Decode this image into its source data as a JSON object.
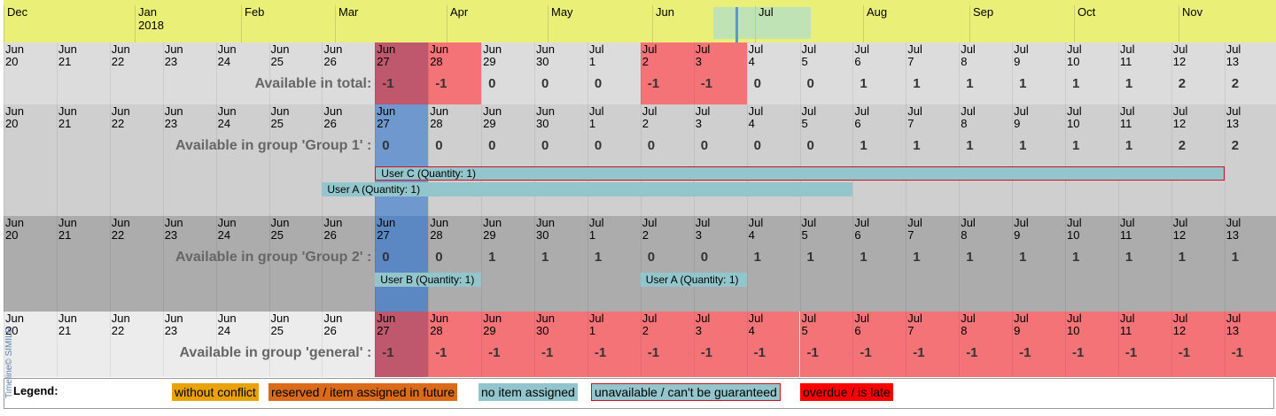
{
  "colors": {
    "overview_bg": "#eaef78",
    "window_bg": "#bfe3b4",
    "marker": "#5a96c6",
    "highlight_blue": "#6f98cf",
    "highlight_red": "#f47377",
    "highlight_dark": "#c0586d",
    "bar_teal": "#93c5cd",
    "bar_border_red": "#d31020",
    "legend_orange": "#e8a20a",
    "legend_brown": "#d96b1a",
    "legend_red": "#ff0000"
  },
  "overview": {
    "months": [
      {
        "label": "Dec",
        "year": ""
      },
      {
        "label": "Jan",
        "year": "2018"
      },
      {
        "label": "Feb",
        "year": ""
      },
      {
        "label": "Mar",
        "year": ""
      },
      {
        "label": "Apr",
        "year": ""
      },
      {
        "label": "May",
        "year": ""
      },
      {
        "label": "Jun",
        "year": ""
      },
      {
        "label": "Jul",
        "year": ""
      },
      {
        "label": "Aug",
        "year": ""
      },
      {
        "label": "Sep",
        "year": ""
      },
      {
        "label": "Oct",
        "year": ""
      },
      {
        "label": "Nov",
        "year": ""
      }
    ]
  },
  "days": [
    {
      "m": "Jun",
      "d": "20"
    },
    {
      "m": "Jun",
      "d": "21"
    },
    {
      "m": "Jun",
      "d": "22"
    },
    {
      "m": "Jun",
      "d": "23"
    },
    {
      "m": "Jun",
      "d": "24"
    },
    {
      "m": "Jun",
      "d": "25"
    },
    {
      "m": "Jun",
      "d": "26"
    },
    {
      "m": "Jun",
      "d": "27"
    },
    {
      "m": "Jun",
      "d": "28"
    },
    {
      "m": "Jun",
      "d": "29"
    },
    {
      "m": "Jun",
      "d": "30"
    },
    {
      "m": "Jul",
      "d": "1"
    },
    {
      "m": "Jul",
      "d": "2"
    },
    {
      "m": "Jul",
      "d": "3"
    },
    {
      "m": "Jul",
      "d": "4"
    },
    {
      "m": "Jul",
      "d": "5"
    },
    {
      "m": "Jul",
      "d": "6"
    },
    {
      "m": "Jul",
      "d": "7"
    },
    {
      "m": "Jul",
      "d": "8"
    },
    {
      "m": "Jul",
      "d": "9"
    },
    {
      "m": "Jul",
      "d": "10"
    },
    {
      "m": "Jul",
      "d": "11"
    },
    {
      "m": "Jul",
      "d": "12"
    },
    {
      "m": "Jul",
      "d": "13"
    }
  ],
  "bands": [
    {
      "key": "total",
      "label": "Available in total:",
      "bg": "#dcdcdc",
      "values": [
        "",
        "",
        "",
        "",
        "",
        "",
        "",
        "-1",
        "-1",
        "0",
        "0",
        "0",
        "-1",
        "-1",
        "0",
        "0",
        "1",
        "1",
        "1",
        "1",
        "1",
        "1",
        "2",
        "2"
      ],
      "cell_highlights": [
        {
          "day": 7,
          "color": "#c0586d"
        },
        {
          "day": 8,
          "color": "#f47377"
        },
        {
          "day": 12,
          "color": "#f47377"
        },
        {
          "day": 13,
          "color": "#f47377"
        }
      ],
      "bars": []
    },
    {
      "key": "group1",
      "label": "Available in group 'Group 1' :",
      "bg": "#cfcfcf",
      "values": [
        "",
        "",
        "",
        "",
        "",
        "",
        "",
        "0",
        "0",
        "0",
        "0",
        "0",
        "0",
        "0",
        "0",
        "0",
        "1",
        "1",
        "1",
        "1",
        "1",
        "1",
        "2",
        "2"
      ],
      "cell_highlights": [
        {
          "day": 7,
          "color": "#6f98cf"
        }
      ],
      "bars": [
        {
          "label": "User C (Quantity: 1)",
          "start_day": 7,
          "end_day": 22,
          "style": "unavailable"
        },
        {
          "label": "User A (Quantity: 1)",
          "start_day": 6,
          "end_day": 15,
          "style": "no-item"
        }
      ]
    },
    {
      "key": "group2",
      "label": "Available in group 'Group 2' :",
      "bg": "#acacac",
      "values": [
        "",
        "",
        "",
        "",
        "",
        "",
        "",
        "0",
        "0",
        "1",
        "1",
        "1",
        "0",
        "0",
        "1",
        "1",
        "1",
        "1",
        "1",
        "1",
        "1",
        "1",
        "1",
        "1"
      ],
      "cell_highlights": [
        {
          "day": 7,
          "color": "#5b87c2"
        }
      ],
      "bars": [
        {
          "label": "User B (Quantity: 1)",
          "start_day": 7,
          "end_day": 8,
          "style": "no-item"
        },
        {
          "label": "User A (Quantity: 1)",
          "start_day": 12,
          "end_day": 13,
          "style": "no-item"
        }
      ]
    },
    {
      "key": "general",
      "label": "Available in group 'general' :",
      "bg": "#ececec",
      "values": [
        "",
        "",
        "",
        "",
        "",
        "",
        "",
        "-1",
        "-1",
        "-1",
        "-1",
        "-1",
        "-1",
        "-1",
        "-1",
        "-1",
        "-1",
        "-1",
        "-1",
        "-1",
        "-1",
        "-1",
        "-1",
        "-1"
      ],
      "cell_highlights": [
        {
          "day": 7,
          "color": "#c0586d"
        },
        {
          "day": 8,
          "color": "#f47377"
        },
        {
          "day": 9,
          "color": "#f47377"
        },
        {
          "day": 10,
          "color": "#f47377"
        },
        {
          "day": 11,
          "color": "#f47377"
        },
        {
          "day": 12,
          "color": "#f47377"
        },
        {
          "day": 13,
          "color": "#f47377"
        },
        {
          "day": 14,
          "color": "#f47377"
        },
        {
          "day": 15,
          "color": "#f47377"
        },
        {
          "day": 16,
          "color": "#f47377"
        },
        {
          "day": 17,
          "color": "#f47377"
        },
        {
          "day": 18,
          "color": "#f47377"
        },
        {
          "day": 19,
          "color": "#f47377"
        },
        {
          "day": 20,
          "color": "#f47377"
        },
        {
          "day": 21,
          "color": "#f47377"
        },
        {
          "day": 22,
          "color": "#f47377"
        },
        {
          "day": 23,
          "color": "#f47377"
        }
      ],
      "bars": []
    }
  ],
  "legend": {
    "title": "Legend:",
    "items": [
      {
        "label": "without conflict",
        "bg": "#e8a20a",
        "border": ""
      },
      {
        "label": "reserved / item assigned in future",
        "bg": "#d96b1a",
        "border": ""
      },
      {
        "label": "no item assigned",
        "bg": "#93c5cd",
        "border": ""
      },
      {
        "label": "unavailable / can't be guaranteed",
        "bg": "#93c5cd",
        "border": "#d31020"
      },
      {
        "label": "overdue / is late",
        "bg": "#ff0000",
        "border": ""
      }
    ]
  },
  "credit": {
    "label": "Timeline© SIMILE"
  }
}
